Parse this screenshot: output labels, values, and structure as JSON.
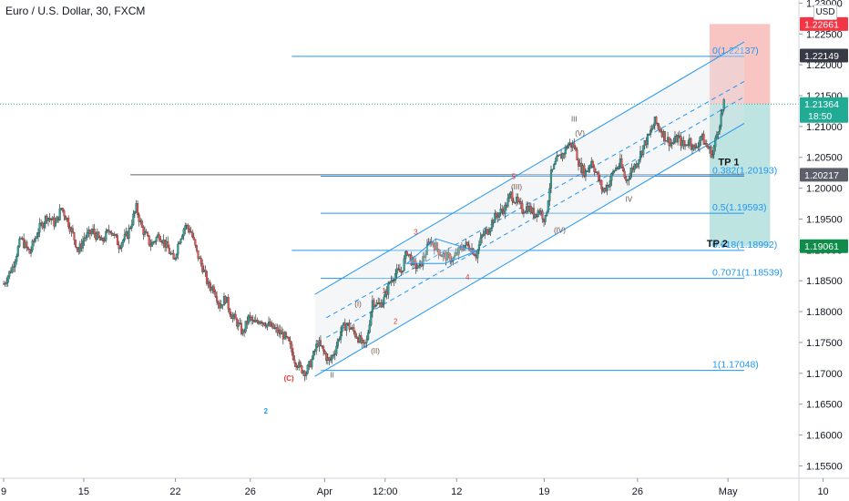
{
  "header": {
    "title": "Euro / U.S. Dollar, 30, FXCM",
    "currency_button": "USD"
  },
  "colors": {
    "candle_up": "#26a69a",
    "candle_down": "#ef5350",
    "candle_line": "#3a3a3a",
    "fib_line": "#2196f3",
    "fib_text": "#2196f3",
    "channel_line": "#2196f3",
    "wave_primary": "#e53935",
    "wave_secondary": "#6d4c41",
    "wave_grey": "#555555",
    "stop_zone": "#f8bbb9",
    "target_zone": "#b2dfdb",
    "tag_red": "#f23645",
    "tag_dark": "#363a45",
    "tag_green": "#22ab94",
    "tag_darkgreen": "#0f8c4a",
    "tag_grey": "#5d606b",
    "count_label": "#2196f3"
  },
  "chart_data": {
    "type": "candlestick",
    "title": "Euro / U.S. Dollar, 30, FXCM",
    "currency": "USD",
    "y_axis": {
      "range": [
        1.153,
        1.2305
      ],
      "ticks": [
        "1.15500",
        "1.16000",
        "1.16500",
        "1.17000",
        "1.17500",
        "1.18000",
        "1.18500",
        "1.19000",
        "1.19500",
        "1.20000",
        "1.20500",
        "1.21000",
        "1.21500",
        "1.22000",
        "1.22500",
        "1.23000"
      ]
    },
    "x_axis": {
      "range": [
        0,
        138
      ],
      "ticks": [
        {
          "label": "9",
          "x": 0
        },
        {
          "label": "15",
          "x": 13.9
        },
        {
          "label": "22",
          "x": 29.8
        },
        {
          "label": "26",
          "x": 42.8
        },
        {
          "label": "Apr",
          "x": 55.7
        },
        {
          "label": "12:00",
          "x": 66.2
        },
        {
          "label": "12",
          "x": 78.6
        },
        {
          "label": "19",
          "x": 93.8
        },
        {
          "label": "26",
          "x": 110.0
        },
        {
          "label": "May",
          "x": 125.7
        },
        {
          "label": "10",
          "x": 142.2
        }
      ]
    },
    "price_path": [
      [
        0,
        1.1845
      ],
      [
        1.5,
        1.1872
      ],
      [
        3,
        1.1918
      ],
      [
        4.5,
        1.1895
      ],
      [
        6,
        1.1932
      ],
      [
        7.5,
        1.1955
      ],
      [
        9,
        1.1942
      ],
      [
        10,
        1.1968
      ],
      [
        11,
        1.195
      ],
      [
        12,
        1.1925
      ],
      [
        13,
        1.1898
      ],
      [
        14,
        1.192
      ],
      [
        15.5,
        1.193
      ],
      [
        17,
        1.1912
      ],
      [
        18.5,
        1.1935
      ],
      [
        20,
        1.1908
      ],
      [
        21.5,
        1.1925
      ],
      [
        23,
        1.1968
      ],
      [
        24,
        1.1935
      ],
      [
        25.5,
        1.1908
      ],
      [
        27,
        1.1925
      ],
      [
        28.5,
        1.1902
      ],
      [
        29.5,
        1.1882
      ],
      [
        30.5,
        1.1918
      ],
      [
        31.5,
        1.194
      ],
      [
        32.5,
        1.193
      ],
      [
        33.5,
        1.1895
      ],
      [
        34.5,
        1.1872
      ],
      [
        35.5,
        1.1842
      ],
      [
        36.5,
        1.1838
      ],
      [
        37.5,
        1.181
      ],
      [
        38.5,
        1.1822
      ],
      [
        39.5,
        1.1795
      ],
      [
        40.5,
        1.1782
      ],
      [
        41.5,
        1.1765
      ],
      [
        42.5,
        1.179
      ],
      [
        43.5,
        1.178
      ],
      [
        44.5,
        1.1788
      ],
      [
        46,
        1.1778
      ],
      [
        47.5,
        1.1768
      ],
      [
        48.5,
        1.1762
      ],
      [
        49.5,
        1.1748
      ],
      [
        50.5,
        1.1722
      ],
      [
        51.5,
        1.1708
      ],
      [
        52.5,
        1.1702
      ],
      [
        53.5,
        1.1722
      ],
      [
        54.5,
        1.175
      ],
      [
        55.5,
        1.1735
      ],
      [
        56.5,
        1.1718
      ],
      [
        57.5,
        1.1738
      ],
      [
        58.5,
        1.1768
      ],
      [
        59.5,
        1.178
      ],
      [
        60.5,
        1.177
      ],
      [
        61.5,
        1.1758
      ],
      [
        62.5,
        1.1742
      ],
      [
        63,
        1.1752
      ],
      [
        64,
        1.1818
      ],
      [
        65,
        1.181
      ],
      [
        66,
        1.182
      ],
      [
        67,
        1.1848
      ],
      [
        68,
        1.1862
      ],
      [
        69,
        1.1865
      ],
      [
        70,
        1.1898
      ],
      [
        71,
        1.1878
      ],
      [
        72,
        1.187
      ],
      [
        73,
        1.189
      ],
      [
        74,
        1.1915
      ],
      [
        75,
        1.1905
      ],
      [
        76,
        1.1892
      ],
      [
        77,
        1.1888
      ],
      [
        78,
        1.1885
      ],
      [
        79,
        1.1898
      ],
      [
        80,
        1.1908
      ],
      [
        81,
        1.1905
      ],
      [
        82,
        1.1892
      ],
      [
        83,
        1.1922
      ],
      [
        84,
        1.1932
      ],
      [
        85,
        1.195
      ],
      [
        86,
        1.196
      ],
      [
        87,
        1.1968
      ],
      [
        88,
        1.199
      ],
      [
        89,
        1.1978
      ],
      [
        90,
        1.1965
      ],
      [
        91,
        1.197
      ],
      [
        92,
        1.1958
      ],
      [
        93,
        1.1965
      ],
      [
        94,
        1.1948
      ],
      [
        95,
        1.2022
      ],
      [
        96,
        1.2045
      ],
      [
        97,
        1.2055
      ],
      [
        98,
        1.2072
      ],
      [
        99,
        1.2068
      ],
      [
        100,
        1.2035
      ],
      [
        101,
        1.2025
      ],
      [
        102,
        1.2045
      ],
      [
        103,
        1.202
      ],
      [
        104,
        1.1995
      ],
      [
        105,
        1.2008
      ],
      [
        106,
        1.203
      ],
      [
        107,
        1.204
      ],
      [
        108,
        1.2012
      ],
      [
        109,
        1.203
      ],
      [
        110,
        1.2045
      ],
      [
        111,
        1.2068
      ],
      [
        112,
        1.2085
      ],
      [
        113,
        1.2108
      ],
      [
        114,
        1.2095
      ],
      [
        115,
        1.208
      ],
      [
        116,
        1.2072
      ],
      [
        117,
        1.2082
      ],
      [
        118,
        1.2068
      ],
      [
        119,
        1.2078
      ],
      [
        120,
        1.2062
      ],
      [
        121,
        1.2085
      ],
      [
        122,
        1.2068
      ],
      [
        123,
        1.2055
      ],
      [
        124,
        1.2098
      ],
      [
        125,
        1.2136
      ]
    ],
    "fibonacci": [
      {
        "ratio": "0",
        "price": 1.22137,
        "label": "0(1.22137)"
      },
      {
        "ratio": "0.382",
        "price": 1.20193,
        "label": "0.382(1.20193)"
      },
      {
        "ratio": "0.5",
        "price": 1.19593,
        "label": "0.5(1.19593)"
      },
      {
        "ratio": "0.618",
        "price": 1.18992,
        "label": "0.618(1.18992)"
      },
      {
        "ratio": "0.7071",
        "price": 1.18539,
        "label": "0.7071(1.18539)"
      },
      {
        "ratio": "1",
        "price": 1.17048,
        "label": "1(1.17048)"
      }
    ],
    "horizontal_line": {
      "price": 1.20217
    },
    "current_price_line": {
      "price": 1.21364
    },
    "channel": {
      "upper": [
        [
          54,
          1.1828
        ],
        [
          128.5,
          1.2237
        ]
      ],
      "lower": [
        [
          54,
          1.1695
        ],
        [
          128.5,
          1.2105
        ]
      ],
      "mid_dashed": [
        [
          56,
          1.179
        ],
        [
          128.5,
          1.2173
        ]
      ],
      "mid_dashed_2": [
        [
          56,
          1.1758
        ],
        [
          128.5,
          1.2148
        ]
      ]
    },
    "triangle": [
      [
        70,
        1.1878
      ],
      [
        75,
        1.1918
      ],
      [
        82,
        1.1898
      ],
      [
        76.5,
        1.1878
      ]
    ],
    "position": {
      "entry": 1.21364,
      "stop": 1.22661,
      "target": 1.19061,
      "x_start": 122.5,
      "x_end": 133
    },
    "price_tags": [
      {
        "price": 1.22661,
        "label": "1.22661",
        "color": "tag_red"
      },
      {
        "price": 1.22149,
        "label": "1.22149",
        "color": "tag_dark"
      },
      {
        "price": 1.21364,
        "label": "1.21364",
        "sub": "18:50",
        "color": "tag_green"
      },
      {
        "price": 1.20217,
        "label": "1.20217",
        "color": "tag_grey"
      },
      {
        "price": 1.19061,
        "label": "1.19061",
        "color": "tag_darkgreen"
      }
    ],
    "targets": [
      {
        "label": "TP 1",
        "x": 124,
        "price": 1.2037
      },
      {
        "label": "TP 2",
        "x": 122,
        "price": 1.1905
      }
    ],
    "wave_labels": [
      {
        "text": "(C)",
        "x": 49.5,
        "price": 1.1688,
        "color": "wave_primary",
        "size": 11
      },
      {
        "text": "2",
        "x": 45.5,
        "price": 1.1635,
        "color": "count_label",
        "size": 20
      },
      {
        "text": "II",
        "x": 57,
        "price": 1.1693,
        "color": "wave_grey",
        "size": 8
      },
      {
        "text": "(I)",
        "x": 61.5,
        "price": 1.1808,
        "color": "wave_secondary",
        "size": 8
      },
      {
        "text": "(II)",
        "x": 64.5,
        "price": 1.1732,
        "color": "wave_secondary",
        "size": 8
      },
      {
        "text": "1",
        "x": 66,
        "price": 1.183,
        "color": "wave_primary",
        "size": 8
      },
      {
        "text": "2",
        "x": 68,
        "price": 1.178,
        "color": "wave_primary",
        "size": 8
      },
      {
        "text": "3",
        "x": 71.5,
        "price": 1.1925,
        "color": "wave_primary",
        "size": 8
      },
      {
        "text": "4",
        "x": 80.5,
        "price": 1.1852,
        "color": "wave_primary",
        "size": 8
      },
      {
        "text": "5",
        "x": 88.5,
        "price": 1.2015,
        "color": "wave_primary",
        "size": 8
      },
      {
        "text": "(III)",
        "x": 89,
        "price": 1.1998,
        "color": "wave_secondary",
        "size": 8
      },
      {
        "text": "(IV)",
        "x": 96.5,
        "price": 1.1928,
        "color": "wave_secondary",
        "size": 8
      },
      {
        "text": "III",
        "x": 99,
        "price": 1.2108,
        "color": "wave_grey",
        "size": 8
      },
      {
        "text": "(V)",
        "x": 100,
        "price": 1.2085,
        "color": "wave_secondary",
        "size": 8
      },
      {
        "text": "IV",
        "x": 108.5,
        "price": 1.1978,
        "color": "wave_grey",
        "size": 8
      }
    ]
  }
}
